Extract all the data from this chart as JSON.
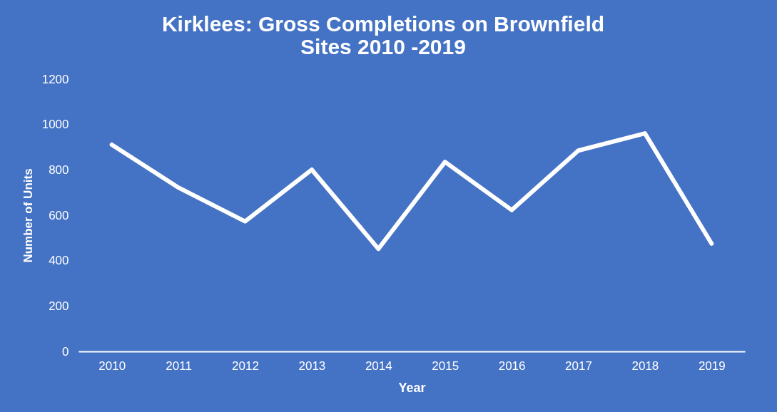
{
  "chart_data": {
    "type": "line",
    "title": [
      "Kirklees: Gross Completions on Brownfield",
      "Sites 2010 -2019"
    ],
    "xlabel": "Year",
    "ylabel": "Number of Units",
    "categories": [
      "2010",
      "2011",
      "2012",
      "2013",
      "2014",
      "2015",
      "2016",
      "2017",
      "2018",
      "2019"
    ],
    "series": [
      {
        "color": "#ffffff",
        "values": [
          911,
          722,
          573,
          801,
          452,
          835,
          623,
          885,
          961,
          475
        ]
      }
    ],
    "ylim": [
      0,
      1200
    ],
    "yticks": [
      0,
      200,
      400,
      600,
      800,
      1000,
      1200
    ],
    "grid": false,
    "marker": "none",
    "line_style": "solid"
  }
}
